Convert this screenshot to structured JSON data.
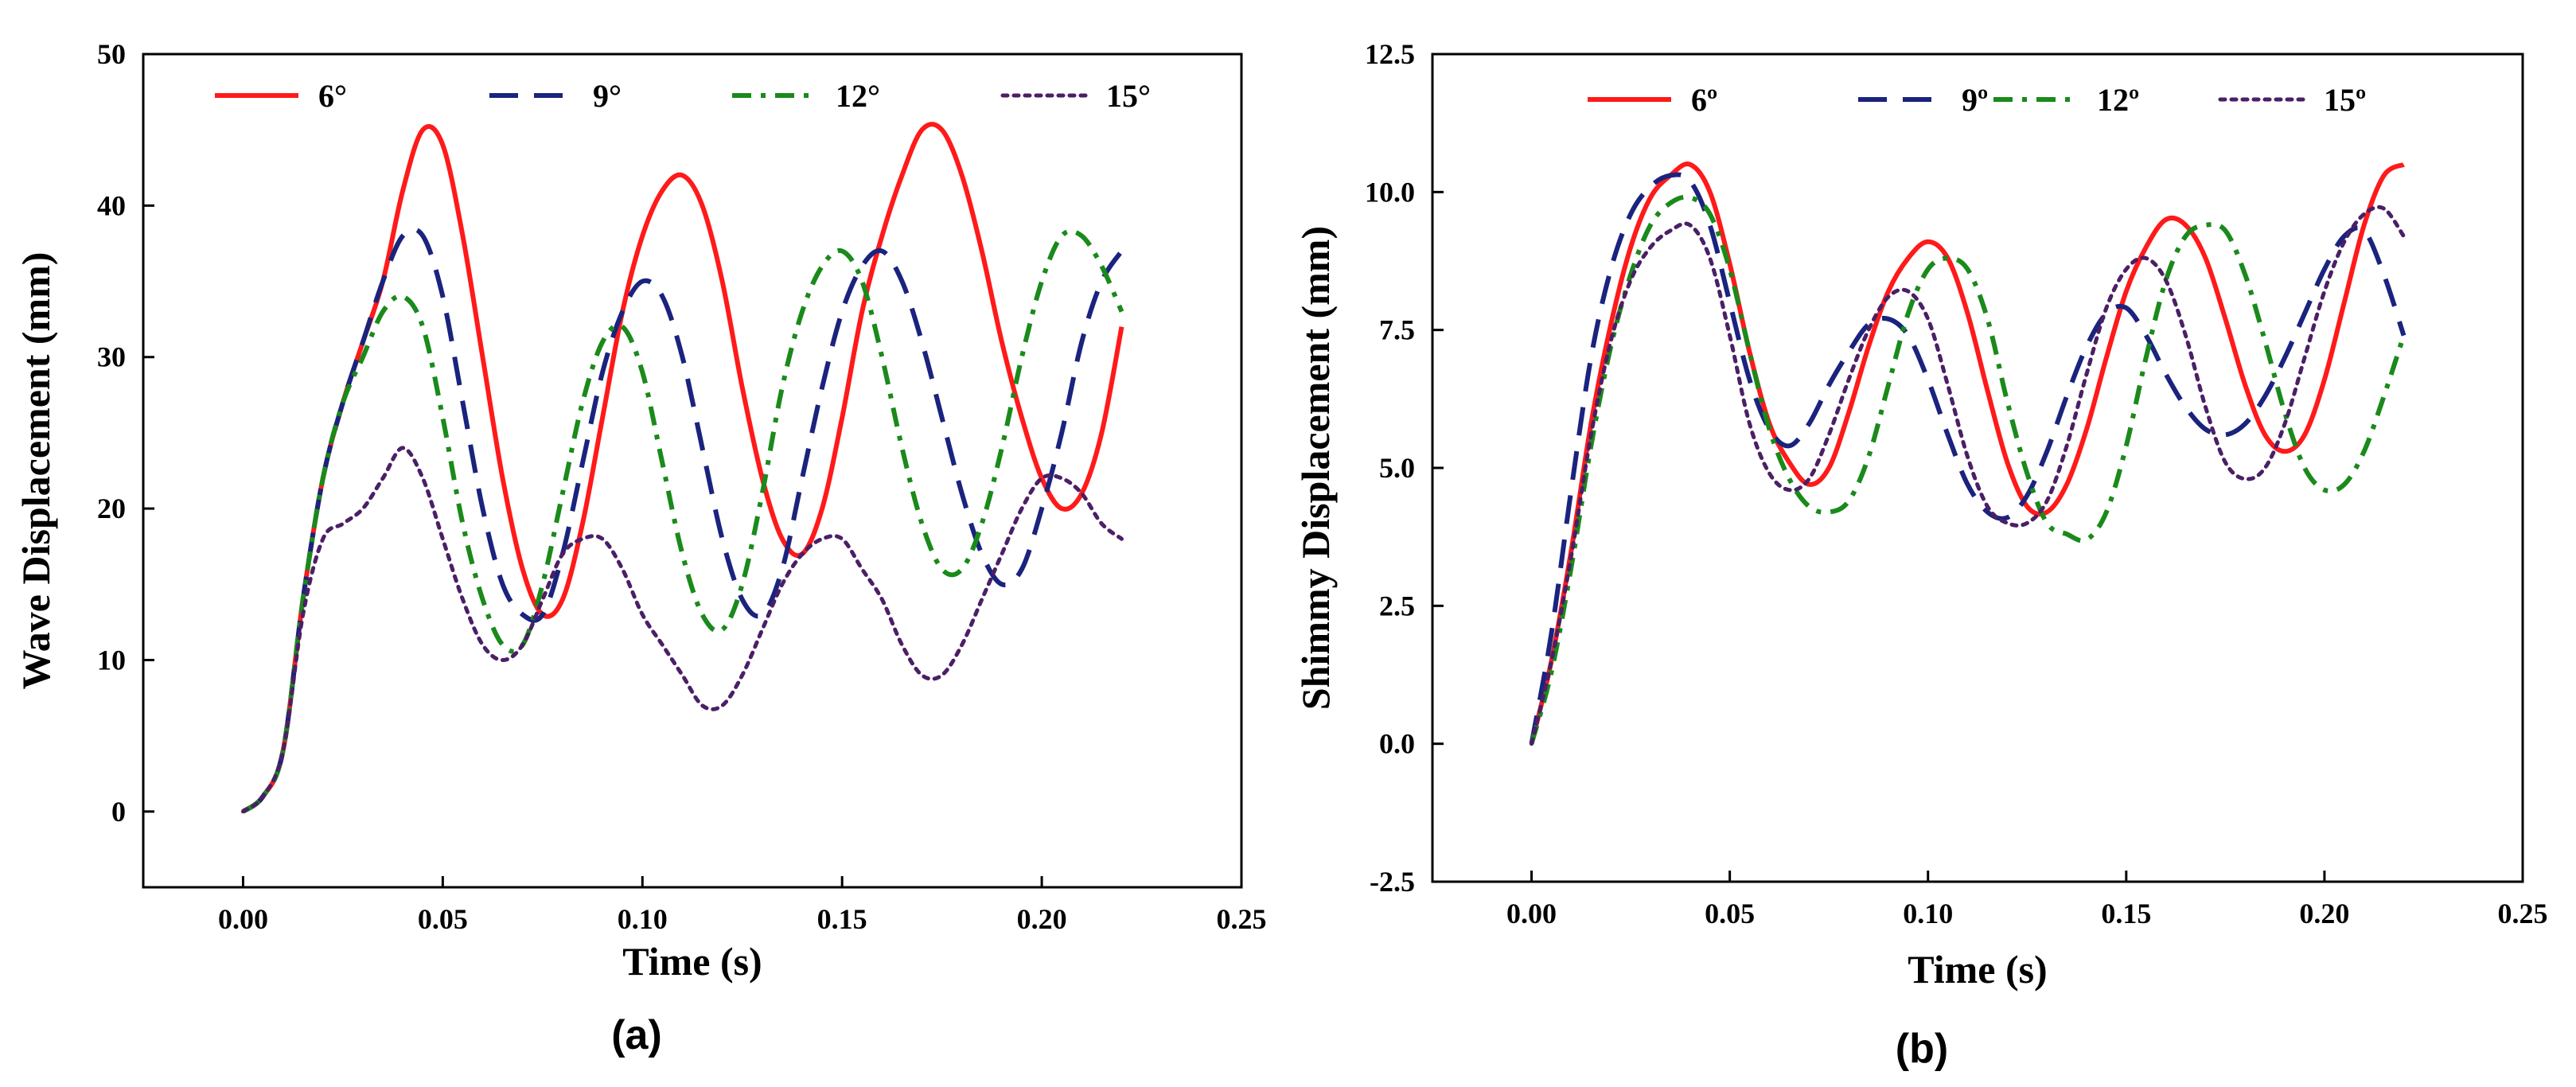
{
  "figure": {
    "panels": [
      "(a)",
      "(b)"
    ]
  },
  "colors": {
    "6deg": "#ff1a1a",
    "9deg": "#1a237e",
    "12deg": "#1a8a1a",
    "15deg": "#4b1f66"
  },
  "chart_data": [
    {
      "type": "line",
      "panel_label": "(a)",
      "title": "",
      "xlabel": "Time (s)",
      "ylabel": "Wave Displacement (mm)",
      "xlim": [
        -0.025,
        0.25
      ],
      "ylim": [
        -5,
        50
      ],
      "xticks": [
        0.0,
        0.05,
        0.1,
        0.15,
        0.2,
        0.25
      ],
      "xtick_labels": [
        "0.00",
        "0.05",
        "0.10",
        "0.15",
        "0.20",
        "0.25"
      ],
      "yticks": [
        0,
        10,
        20,
        30,
        40,
        50
      ],
      "ytick_labels": [
        "0",
        "10",
        "20",
        "30",
        "40",
        "50"
      ],
      "legend_position": "top",
      "series": [
        {
          "name": "6°",
          "color_key": "6deg",
          "dash": "solid",
          "x": [
            0,
            0.005,
            0.01,
            0.015,
            0.02,
            0.025,
            0.03,
            0.035,
            0.04,
            0.045,
            0.05,
            0.055,
            0.06,
            0.065,
            0.07,
            0.075,
            0.08,
            0.085,
            0.09,
            0.095,
            0.1,
            0.105,
            0.11,
            0.115,
            0.12,
            0.125,
            0.13,
            0.135,
            0.14,
            0.145,
            0.15,
            0.155,
            0.16,
            0.165,
            0.17,
            0.175,
            0.18,
            0.185,
            0.19,
            0.195,
            0.2,
            0.205,
            0.21,
            0.215,
            0.22
          ],
          "y": [
            0,
            1,
            4,
            14,
            22,
            27,
            31,
            35,
            41,
            45,
            44,
            38,
            30,
            22,
            16,
            13,
            14,
            19,
            26,
            33,
            38,
            41,
            42,
            40,
            35,
            28,
            22,
            18,
            17,
            20,
            26,
            33,
            38,
            42,
            45,
            45,
            42,
            37,
            31,
            26,
            22,
            20,
            21,
            25,
            32
          ]
        },
        {
          "name": "9°",
          "color_key": "9deg",
          "dash": "dashed",
          "x": [
            0,
            0.005,
            0.01,
            0.015,
            0.02,
            0.025,
            0.03,
            0.035,
            0.04,
            0.045,
            0.05,
            0.055,
            0.06,
            0.065,
            0.07,
            0.075,
            0.08,
            0.085,
            0.09,
            0.095,
            0.1,
            0.105,
            0.11,
            0.115,
            0.12,
            0.125,
            0.13,
            0.135,
            0.14,
            0.145,
            0.15,
            0.155,
            0.16,
            0.165,
            0.17,
            0.175,
            0.18,
            0.185,
            0.19,
            0.195,
            0.2,
            0.205,
            0.21,
            0.215,
            0.22
          ],
          "y": [
            0,
            1,
            4,
            14,
            22,
            27,
            31,
            35,
            38,
            38,
            34,
            27,
            20,
            15,
            13,
            13,
            17,
            23,
            29,
            33,
            35,
            34,
            30,
            24,
            18,
            14,
            13,
            16,
            22,
            28,
            33,
            36,
            37,
            35,
            31,
            26,
            21,
            17,
            15,
            16,
            20,
            25,
            31,
            35,
            37
          ]
        },
        {
          "name": "12°",
          "color_key": "12deg",
          "dash": "dashdot",
          "x": [
            0,
            0.005,
            0.01,
            0.015,
            0.02,
            0.025,
            0.03,
            0.035,
            0.04,
            0.045,
            0.05,
            0.055,
            0.06,
            0.065,
            0.07,
            0.075,
            0.08,
            0.085,
            0.09,
            0.095,
            0.1,
            0.105,
            0.11,
            0.115,
            0.12,
            0.125,
            0.13,
            0.135,
            0.14,
            0.145,
            0.15,
            0.155,
            0.16,
            0.165,
            0.17,
            0.175,
            0.18,
            0.185,
            0.19,
            0.195,
            0.2,
            0.205,
            0.21,
            0.215,
            0.22
          ],
          "y": [
            0,
            1,
            4,
            14,
            22,
            27,
            30,
            33,
            34,
            32,
            26,
            19,
            14,
            11,
            11,
            15,
            21,
            27,
            31,
            32,
            29,
            23,
            17,
            13,
            12,
            15,
            21,
            28,
            33,
            36,
            37,
            35,
            30,
            24,
            19,
            16,
            16,
            19,
            24,
            30,
            35,
            38,
            38,
            36,
            33
          ]
        },
        {
          "name": "15°",
          "color_key": "15deg",
          "dash": "dotted",
          "x": [
            0,
            0.005,
            0.01,
            0.015,
            0.02,
            0.025,
            0.03,
            0.035,
            0.04,
            0.045,
            0.05,
            0.055,
            0.06,
            0.065,
            0.07,
            0.075,
            0.08,
            0.085,
            0.09,
            0.095,
            0.1,
            0.105,
            0.11,
            0.115,
            0.12,
            0.125,
            0.13,
            0.135,
            0.14,
            0.145,
            0.15,
            0.155,
            0.16,
            0.165,
            0.17,
            0.175,
            0.18,
            0.185,
            0.19,
            0.195,
            0.2,
            0.205,
            0.21,
            0.215,
            0.22
          ],
          "y": [
            0,
            1,
            4,
            13,
            18,
            19,
            20,
            22,
            24,
            22,
            18,
            14,
            11,
            10,
            11,
            14,
            17,
            18,
            18,
            16,
            13,
            11,
            9,
            7,
            7,
            9,
            12,
            15,
            17,
            18,
            18,
            16,
            14,
            11,
            9,
            9,
            11,
            14,
            17,
            20,
            22,
            22,
            21,
            19,
            18
          ]
        }
      ]
    },
    {
      "type": "line",
      "panel_label": "(b)",
      "title": "",
      "xlabel": "Time (s)",
      "ylabel": "Shimmy Displacement (mm)",
      "xlim": [
        -0.025,
        0.25
      ],
      "ylim": [
        -2.5,
        12.5
      ],
      "xticks": [
        0.0,
        0.05,
        0.1,
        0.15,
        0.2,
        0.25
      ],
      "xtick_labels": [
        "0.00",
        "0.05",
        "0.10",
        "0.15",
        "0.20",
        "0.25"
      ],
      "yticks": [
        -2.5,
        0.0,
        2.5,
        5.0,
        7.5,
        10.0,
        12.5
      ],
      "ytick_labels": [
        "-2.5",
        "0.0",
        "2.5",
        "5.0",
        "7.5",
        "10.0",
        "12.5"
      ],
      "legend_position": "top",
      "series": [
        {
          "name": "6º",
          "color_key": "6deg",
          "dash": "solid",
          "x": [
            0,
            0.005,
            0.01,
            0.015,
            0.02,
            0.025,
            0.03,
            0.035,
            0.04,
            0.045,
            0.05,
            0.055,
            0.06,
            0.065,
            0.07,
            0.075,
            0.08,
            0.085,
            0.09,
            0.095,
            0.1,
            0.105,
            0.11,
            0.115,
            0.12,
            0.125,
            0.13,
            0.135,
            0.14,
            0.145,
            0.15,
            0.155,
            0.16,
            0.165,
            0.17,
            0.175,
            0.18,
            0.185,
            0.19,
            0.195,
            0.2,
            0.205,
            0.21,
            0.215,
            0.22
          ],
          "y": [
            0,
            1.5,
            3.5,
            5.8,
            7.6,
            9.0,
            9.9,
            10.3,
            10.5,
            10.0,
            8.7,
            7.1,
            5.8,
            5.1,
            4.7,
            5.0,
            6.0,
            7.2,
            8.2,
            8.8,
            9.1,
            8.8,
            7.8,
            6.4,
            5.1,
            4.3,
            4.2,
            4.7,
            5.7,
            7.0,
            8.2,
            9.0,
            9.5,
            9.4,
            8.8,
            7.7,
            6.5,
            5.6,
            5.3,
            5.6,
            6.6,
            8.0,
            9.4,
            10.3,
            10.5
          ]
        },
        {
          "name": "9º",
          "color_key": "9deg",
          "dash": "dashed",
          "x": [
            0,
            0.005,
            0.01,
            0.015,
            0.02,
            0.025,
            0.03,
            0.035,
            0.04,
            0.045,
            0.05,
            0.055,
            0.06,
            0.065,
            0.07,
            0.075,
            0.08,
            0.085,
            0.09,
            0.095,
            0.1,
            0.105,
            0.11,
            0.115,
            0.12,
            0.125,
            0.13,
            0.135,
            0.14,
            0.145,
            0.15,
            0.155,
            0.16,
            0.165,
            0.17,
            0.175,
            0.18,
            0.185,
            0.19,
            0.195,
            0.2,
            0.205,
            0.21,
            0.215,
            0.22
          ],
          "y": [
            0,
            2.0,
            4.6,
            7.0,
            8.6,
            9.6,
            10.1,
            10.3,
            10.2,
            9.4,
            8.0,
            6.6,
            5.7,
            5.4,
            5.8,
            6.5,
            7.1,
            7.6,
            7.7,
            7.4,
            6.6,
            5.6,
            4.7,
            4.2,
            4.1,
            4.5,
            5.3,
            6.3,
            7.2,
            7.8,
            7.9,
            7.4,
            6.7,
            6.1,
            5.7,
            5.6,
            5.8,
            6.3,
            7.0,
            7.8,
            8.6,
            9.2,
            9.3,
            8.5,
            7.4
          ]
        },
        {
          "name": "12º",
          "color_key": "12deg",
          "dash": "dashdot",
          "x": [
            0,
            0.005,
            0.01,
            0.015,
            0.02,
            0.025,
            0.03,
            0.035,
            0.04,
            0.045,
            0.05,
            0.055,
            0.06,
            0.065,
            0.07,
            0.075,
            0.08,
            0.085,
            0.09,
            0.095,
            0.1,
            0.105,
            0.11,
            0.115,
            0.12,
            0.125,
            0.13,
            0.135,
            0.14,
            0.145,
            0.15,
            0.155,
            0.16,
            0.165,
            0.17,
            0.175,
            0.18,
            0.185,
            0.19,
            0.195,
            0.2,
            0.205,
            0.21,
            0.215,
            0.22
          ],
          "y": [
            0,
            1.3,
            3.2,
            5.4,
            7.2,
            8.5,
            9.4,
            9.8,
            9.9,
            9.6,
            8.6,
            7.1,
            5.7,
            4.8,
            4.3,
            4.2,
            4.4,
            5.2,
            6.5,
            7.8,
            8.6,
            8.8,
            8.6,
            7.7,
            6.2,
            4.9,
            4.0,
            3.8,
            3.7,
            4.2,
            5.4,
            7.0,
            8.4,
            9.2,
            9.4,
            9.3,
            8.5,
            7.3,
            6.0,
            5.0,
            4.6,
            4.7,
            5.3,
            6.3,
            7.4
          ]
        },
        {
          "name": "15º",
          "color_key": "15deg",
          "dash": "dotted",
          "x": [
            0,
            0.005,
            0.01,
            0.015,
            0.02,
            0.025,
            0.03,
            0.035,
            0.04,
            0.045,
            0.05,
            0.055,
            0.06,
            0.065,
            0.07,
            0.075,
            0.08,
            0.085,
            0.09,
            0.095,
            0.1,
            0.105,
            0.11,
            0.115,
            0.12,
            0.125,
            0.13,
            0.135,
            0.14,
            0.145,
            0.15,
            0.155,
            0.16,
            0.165,
            0.17,
            0.175,
            0.18,
            0.185,
            0.19,
            0.195,
            0.2,
            0.205,
            0.21,
            0.215,
            0.22
          ],
          "y": [
            0,
            1.5,
            3.4,
            5.6,
            7.3,
            8.4,
            9.0,
            9.3,
            9.4,
            8.8,
            7.4,
            5.8,
            4.9,
            4.6,
            4.8,
            5.6,
            6.6,
            7.5,
            8.1,
            8.2,
            7.7,
            6.5,
            5.2,
            4.3,
            4.0,
            4.0,
            4.4,
            5.4,
            6.7,
            7.9,
            8.6,
            8.8,
            8.4,
            7.4,
            6.1,
            5.1,
            4.8,
            5.0,
            5.8,
            7.0,
            8.2,
            9.1,
            9.6,
            9.7,
            9.2
          ]
        }
      ]
    }
  ]
}
